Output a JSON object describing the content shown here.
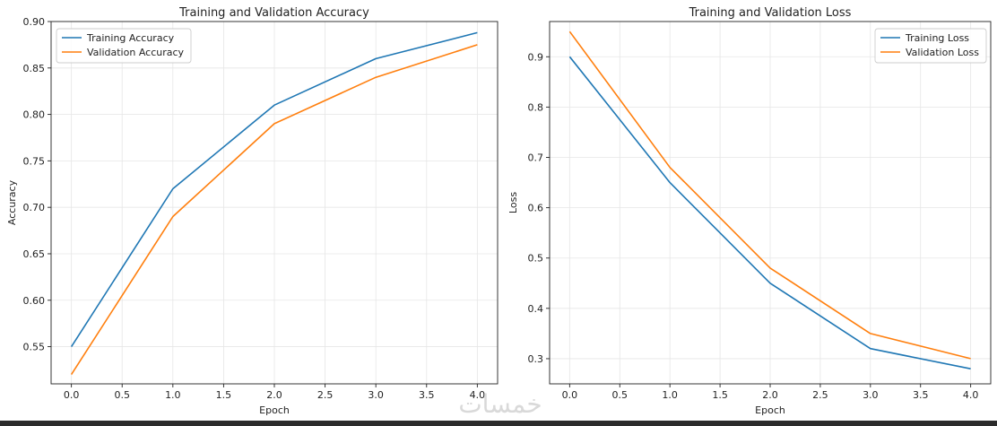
{
  "chart_data": [
    {
      "type": "line",
      "title": "Training and Validation Accuracy",
      "xlabel": "Epoch",
      "ylabel": "Accuracy",
      "xlim": [
        -0.2,
        4.2
      ],
      "ylim": [
        0.51,
        0.9
      ],
      "xticks": [
        "0.0",
        "0.5",
        "1.0",
        "1.5",
        "2.0",
        "2.5",
        "3.0",
        "3.5",
        "4.0"
      ],
      "yticks": [
        "0.55",
        "0.60",
        "0.65",
        "0.70",
        "0.75",
        "0.80",
        "0.85",
        "0.90"
      ],
      "grid": true,
      "legend": "upper-left",
      "x": [
        0,
        1,
        2,
        3,
        4
      ],
      "series": [
        {
          "name": "Training Accuracy",
          "values": [
            0.55,
            0.72,
            0.81,
            0.86,
            0.888
          ],
          "color": "#1f77b4"
        },
        {
          "name": "Validation Accuracy",
          "values": [
            0.52,
            0.69,
            0.79,
            0.84,
            0.875
          ],
          "color": "#ff7f0e"
        }
      ]
    },
    {
      "type": "line",
      "title": "Training and Validation Loss",
      "xlabel": "Epoch",
      "ylabel": "Loss",
      "xlim": [
        -0.2,
        4.2
      ],
      "ylim": [
        0.25,
        0.97
      ],
      "xticks": [
        "0.0",
        "0.5",
        "1.0",
        "1.5",
        "2.0",
        "2.5",
        "3.0",
        "3.5",
        "4.0"
      ],
      "yticks": [
        "0.3",
        "0.4",
        "0.5",
        "0.6",
        "0.7",
        "0.8",
        "0.9"
      ],
      "grid": true,
      "legend": "upper-right",
      "x": [
        0,
        1,
        2,
        3,
        4
      ],
      "series": [
        {
          "name": "Training Loss",
          "values": [
            0.9,
            0.65,
            0.45,
            0.32,
            0.28
          ],
          "color": "#1f77b4"
        },
        {
          "name": "Validation Loss",
          "values": [
            0.95,
            0.68,
            0.48,
            0.35,
            0.3
          ],
          "color": "#ff7f0e"
        }
      ]
    }
  ],
  "watermark": {
    "text": "خمسات",
    "color": "#d9d9d9"
  },
  "bottom_bar_color": "#2b2b2b"
}
